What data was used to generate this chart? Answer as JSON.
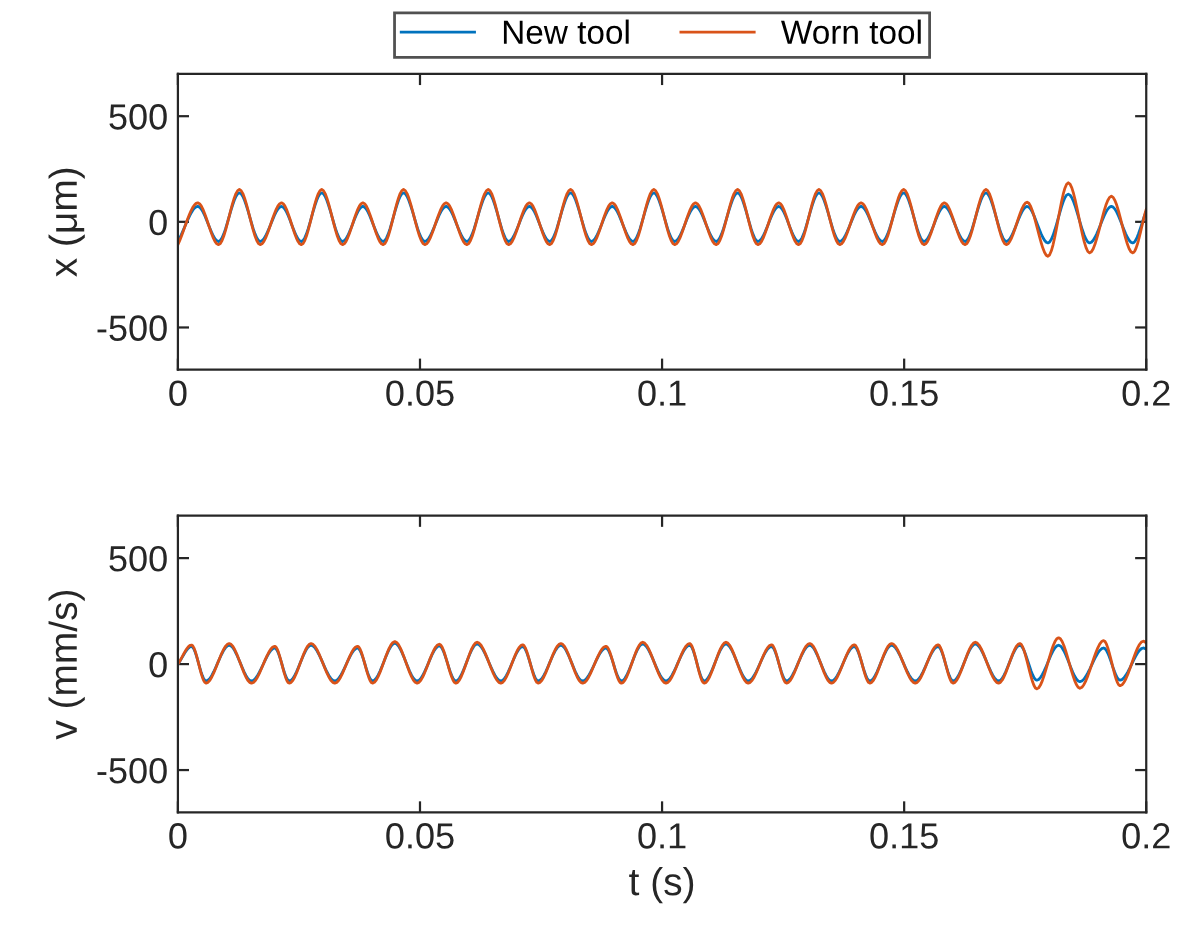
{
  "chart_data": [
    {
      "type": "line",
      "ylabel": "x (μm)",
      "xlim": [
        0,
        0.2
      ],
      "ylim": [
        -700,
        700
      ],
      "xticks": [
        0,
        0.05,
        0.1,
        0.15,
        0.2
      ],
      "yticks": [
        -500,
        0,
        500
      ],
      "legend": "top",
      "grid": false,
      "series": [
        {
          "name": "New tool",
          "color": "#0072bd",
          "x": [
            0,
            0.0041,
            0.0084,
            0.0127,
            0.017,
            0.0214,
            0.0255,
            0.0297,
            0.034,
            0.0382,
            0.0424,
            0.0466,
            0.051,
            0.0554,
            0.0597,
            0.0641,
            0.0683,
            0.0726,
            0.0768,
            0.0811,
            0.0854,
            0.0897,
            0.094,
            0.0983,
            0.1026,
            0.1069,
            0.1112,
            0.1156,
            0.1198,
            0.1241,
            0.1282,
            0.1324,
            0.1367,
            0.1411,
            0.1455,
            0.1499,
            0.1541,
            0.1583,
            0.1626,
            0.1669,
            0.1711,
            0.1754,
            0.1797,
            0.1839,
            0.1883,
            0.1928,
            0.1972,
            0.2
          ],
          "values": [
            -93,
            73,
            -93,
            137,
            -93,
            73,
            -93,
            137,
            -93,
            73,
            -93,
            137,
            -93,
            73,
            -93,
            137,
            -93,
            73,
            -93,
            137,
            -93,
            73,
            -93,
            137,
            -93,
            73,
            -93,
            137,
            -93,
            73,
            -93,
            137,
            -93,
            73,
            -93,
            137,
            -93,
            73,
            -93,
            137,
            -93,
            73,
            -100,
            131,
            -100,
            73,
            -100,
            50
          ]
        },
        {
          "name": "Worn tool",
          "color": "#d95319",
          "x": [
            0,
            0.0041,
            0.0084,
            0.0127,
            0.017,
            0.0214,
            0.0255,
            0.0297,
            0.034,
            0.0382,
            0.0424,
            0.0466,
            0.051,
            0.0554,
            0.0597,
            0.0641,
            0.0683,
            0.0726,
            0.0768,
            0.0811,
            0.0854,
            0.0897,
            0.094,
            0.0983,
            0.1026,
            0.1069,
            0.1112,
            0.1156,
            0.1198,
            0.1241,
            0.1282,
            0.1324,
            0.1367,
            0.1411,
            0.1455,
            0.1499,
            0.1541,
            0.1583,
            0.1626,
            0.1669,
            0.1711,
            0.1754,
            0.1797,
            0.1839,
            0.1883,
            0.1928,
            0.1972,
            0.2
          ],
          "values": [
            -108,
            90,
            -108,
            153,
            -108,
            90,
            -108,
            153,
            -108,
            90,
            -108,
            153,
            -108,
            90,
            -108,
            153,
            -108,
            90,
            -108,
            153,
            -108,
            90,
            -108,
            153,
            -108,
            90,
            -108,
            153,
            -108,
            90,
            -108,
            153,
            -108,
            90,
            -108,
            153,
            -108,
            90,
            -108,
            153,
            -108,
            93,
            -163,
            185,
            -147,
            121,
            -147,
            60
          ]
        }
      ]
    },
    {
      "type": "line",
      "xlabel": "t (s)",
      "ylabel": "v (mm/s)",
      "xlim": [
        0,
        0.2
      ],
      "ylim": [
        -700,
        700
      ],
      "xticks": [
        0,
        0.05,
        0.1,
        0.15,
        0.2
      ],
      "yticks": [
        -500,
        0,
        500
      ],
      "grid": false,
      "series": [
        {
          "color": "#0072bd",
          "x": [
            0,
            0.0028,
            0.0058,
            0.0106,
            0.0152,
            0.02,
            0.023,
            0.0275,
            0.0324,
            0.0371,
            0.0402,
            0.0448,
            0.0494,
            0.054,
            0.0574,
            0.0618,
            0.0667,
            0.0712,
            0.0744,
            0.0791,
            0.0836,
            0.0884,
            0.0916,
            0.096,
            0.1008,
            0.1057,
            0.1087,
            0.1132,
            0.1178,
            0.1226,
            0.1257,
            0.1305,
            0.135,
            0.1397,
            0.1429,
            0.1474,
            0.1523,
            0.157,
            0.1601,
            0.1647,
            0.1695,
            0.1739,
            0.1774,
            0.1819,
            0.1863,
            0.1912,
            0.1946,
            0.1994,
            0.2
          ],
          "values": [
            0,
            83,
            -80,
            89,
            -80,
            76,
            -80,
            89,
            -80,
            76,
            -80,
            98,
            -80,
            86,
            -80,
            95,
            -80,
            83,
            -80,
            89,
            -80,
            76,
            -80,
            95,
            -80,
            89,
            -80,
            95,
            -80,
            83,
            -80,
            89,
            -80,
            83,
            -80,
            89,
            -80,
            83,
            -80,
            95,
            -80,
            89,
            -76,
            89,
            -83,
            76,
            -76,
            76,
            70
          ]
        },
        {
          "color": "#d95319",
          "x": [
            0,
            0.0028,
            0.0058,
            0.0106,
            0.0152,
            0.02,
            0.023,
            0.0275,
            0.0324,
            0.0371,
            0.0402,
            0.0448,
            0.0494,
            0.054,
            0.0574,
            0.0618,
            0.0667,
            0.0712,
            0.0744,
            0.0791,
            0.0836,
            0.0884,
            0.0916,
            0.096,
            0.1008,
            0.1057,
            0.1087,
            0.1132,
            0.1178,
            0.1226,
            0.1257,
            0.1305,
            0.135,
            0.1397,
            0.1429,
            0.1474,
            0.1523,
            0.157,
            0.1601,
            0.1647,
            0.1695,
            0.1739,
            0.1774,
            0.1819,
            0.1863,
            0.1912,
            0.1946,
            0.1994,
            0.2
          ],
          "values": [
            0,
            90,
            -90,
            97,
            -90,
            84,
            -90,
            97,
            -90,
            84,
            -90,
            106,
            -90,
            94,
            -90,
            103,
            -90,
            91,
            -90,
            97,
            -90,
            84,
            -90,
            103,
            -90,
            97,
            -90,
            103,
            -90,
            91,
            -90,
            97,
            -90,
            91,
            -90,
            97,
            -90,
            91,
            -90,
            103,
            -90,
            97,
            -117,
            124,
            -114,
            111,
            -102,
            108,
            100
          ]
        }
      ]
    }
  ]
}
